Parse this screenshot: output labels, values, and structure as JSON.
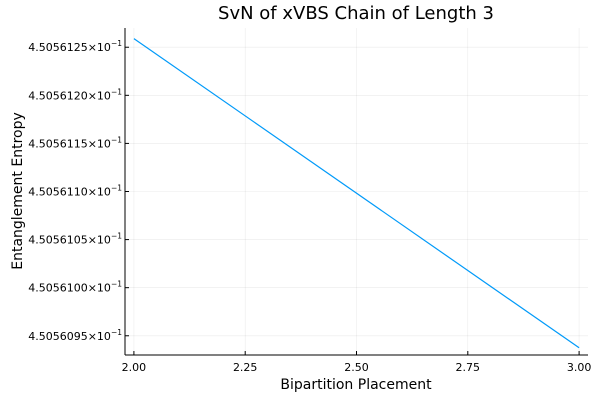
{
  "chart_data": {
    "type": "line",
    "title": "SvN of xVBS Chain of Length 3",
    "xlabel": "Bipartition Placement",
    "ylabel": "Entanglement Entropy",
    "xlim": [
      1.98,
      3.02
    ],
    "ylim": [
      0.45056093,
      0.45056127
    ],
    "x_ticks": [
      2.0,
      2.25,
      2.5,
      2.75,
      3.0
    ],
    "x_tick_labels": [
      "2.00",
      "2.25",
      "2.50",
      "2.75",
      "3.00"
    ],
    "y_ticks": [
      0.45056095,
      0.450561,
      0.45056105,
      0.4505611,
      0.45056115,
      0.4505612,
      0.45056125
    ],
    "y_tick_mantissas": [
      "4.5056095",
      "4.5056100",
      "4.5056105",
      "4.5056110",
      "4.5056115",
      "4.5056120",
      "4.5056125"
    ],
    "y_tick_multiplier": "×10",
    "y_tick_exponent": "−1",
    "grid": true,
    "legend": "none",
    "series": [
      {
        "color": "#009af9",
        "x": [
          2.0,
          3.0
        ],
        "y": [
          0.450561259,
          0.4505609375
        ]
      }
    ]
  }
}
